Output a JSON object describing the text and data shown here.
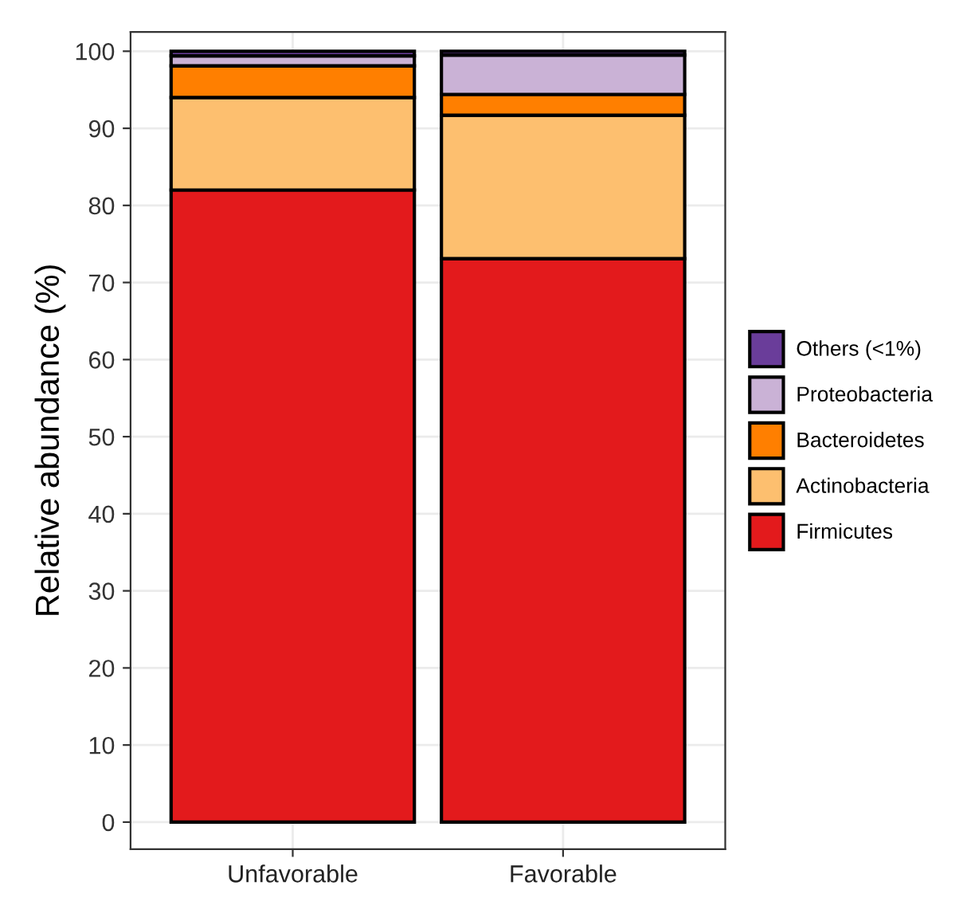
{
  "chart_data": {
    "type": "bar",
    "stacked": true,
    "ylabel": "Relative abundance (%)",
    "categories": [
      "Unfavorable",
      "Favorable"
    ],
    "series": [
      {
        "name": "Firmicutes",
        "color": "#e31a1c",
        "values": [
          82.0,
          73.1
        ]
      },
      {
        "name": "Actinobacteria",
        "color": "#fdbf6f",
        "values": [
          12.0,
          18.6
        ]
      },
      {
        "name": "Bacteroidetes",
        "color": "#ff7f00",
        "values": [
          4.1,
          2.7
        ]
      },
      {
        "name": "Proteobacteria",
        "color": "#cab2d6",
        "values": [
          1.3,
          5.1
        ]
      },
      {
        "name": "Others (<1%)",
        "color": "#6a3d9a",
        "values": [
          0.6,
          0.5
        ]
      }
    ],
    "ylim": [
      -3.5,
      102.5
    ],
    "yticks": [
      0,
      10,
      20,
      30,
      40,
      50,
      60,
      70,
      80,
      90,
      100
    ],
    "grid": true,
    "legend": "right"
  }
}
